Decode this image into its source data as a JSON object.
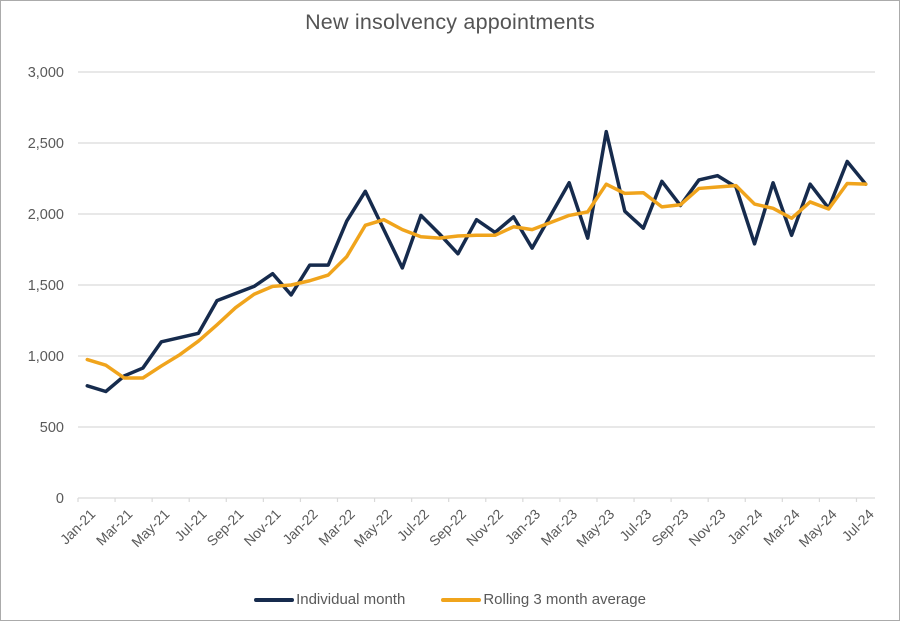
{
  "colors": {
    "navy": "#162b4d",
    "orange": "#f0a41c",
    "gridline": "#d9d9d9",
    "axis_text": "#595959",
    "title_text": "#545454",
    "border": "#ababab"
  },
  "chart_data": {
    "type": "line",
    "title": "New insolvency appointments",
    "xlabel": "",
    "ylabel": "",
    "ylim": [
      0,
      3000
    ],
    "y_tick_step": 500,
    "y_tick_labels": [
      "0",
      "500",
      "1,000",
      "1,500",
      "2,000",
      "2,500",
      "3,000"
    ],
    "x_label_interval": 2,
    "grid": true,
    "legend_position": "bottom",
    "x": [
      "Jan-21",
      "Feb-21",
      "Mar-21",
      "Apr-21",
      "May-21",
      "Jun-21",
      "Jul-21",
      "Aug-21",
      "Sep-21",
      "Oct-21",
      "Nov-21",
      "Dec-21",
      "Jan-22",
      "Feb-22",
      "Mar-22",
      "Apr-22",
      "May-22",
      "Jun-22",
      "Jul-22",
      "Aug-22",
      "Sep-22",
      "Oct-22",
      "Nov-22",
      "Dec-22",
      "Jan-23",
      "Feb-23",
      "Mar-23",
      "Apr-23",
      "May-23",
      "Jun-23",
      "Jul-23",
      "Aug-23",
      "Sep-23",
      "Oct-23",
      "Nov-23",
      "Dec-23",
      "Jan-24",
      "Feb-24",
      "Mar-24",
      "Apr-24",
      "May-24",
      "Jun-24",
      "Jul-24"
    ],
    "series": [
      {
        "name": "Individual month",
        "color": "#162b4d",
        "values": [
          790,
          750,
          860,
          915,
          1100,
          1130,
          1160,
          1390,
          1440,
          1490,
          1580,
          1430,
          1640,
          1640,
          1950,
          2160,
          1890,
          1620,
          1990,
          1860,
          1720,
          1960,
          1870,
          1980,
          1760,
          1990,
          2220,
          1830,
          2580,
          2020,
          1900,
          2230,
          2060,
          2240,
          2270,
          2190,
          1790,
          2220,
          1850,
          2210,
          2040,
          2370,
          2210
        ]
      },
      {
        "name": "Rolling 3 month average",
        "color": "#f0a41c",
        "values": [
          975,
          935,
          845,
          845,
          930,
          1010,
          1105,
          1220,
          1340,
          1435,
          1490,
          1500,
          1530,
          1570,
          1700,
          1920,
          1960,
          1890,
          1840,
          1830,
          1845,
          1850,
          1850,
          1910,
          1890,
          1940,
          1990,
          2015,
          2210,
          2145,
          2150,
          2050,
          2065,
          2180,
          2190,
          2200,
          2070,
          2040,
          1970,
          2085,
          2035,
          2215,
          2210
        ]
      }
    ]
  }
}
